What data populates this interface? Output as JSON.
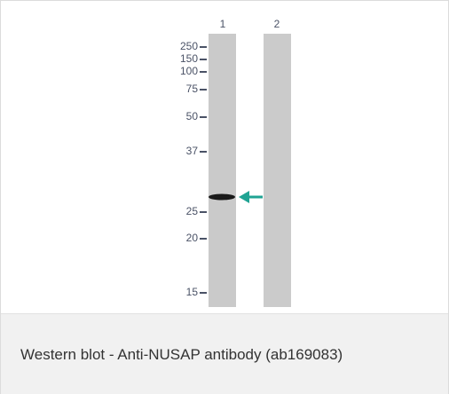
{
  "lanes": [
    "1",
    "2"
  ],
  "markers": [
    "250",
    "150",
    "100",
    "75",
    "50",
    "37",
    "25",
    "20",
    "15"
  ],
  "caption": "Western blot - Anti-NUSAP antibody (ab169083)"
}
